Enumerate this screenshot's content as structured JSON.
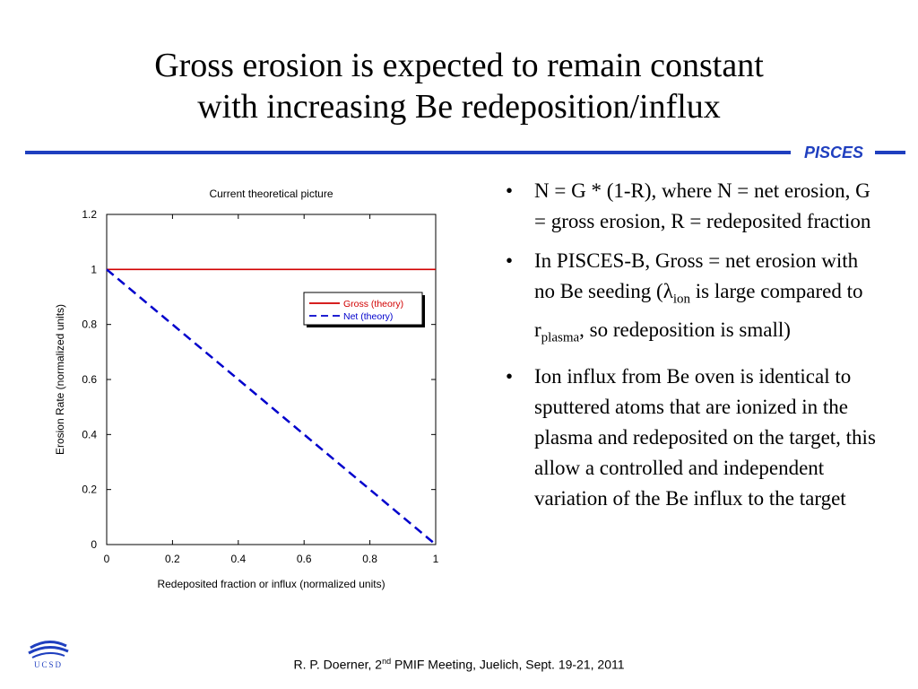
{
  "slide": {
    "title_line1": "Gross erosion is expected to remain constant",
    "title_line2": "with increasing Be redeposition/influx",
    "brand": "PISCES",
    "accent_color": "#1f3fbf"
  },
  "bullets": [
    {
      "text": "N = G * (1-R), where N = net erosion, G = gross erosion, R = redeposited fraction"
    },
    {
      "part1": "In PISCES-B, Gross = net erosion with no Be seeding (",
      "lambda": "λ",
      "sub1": "ion",
      "part2": " is large compared to r",
      "sub2": "plasma",
      "part3": ", so redeposition is small)"
    },
    {
      "text": "Ion influx from Be oven is identical to sputtered atoms that are ionized in the plasma and redeposited on the target, this allow a controlled and independent variation of the Be influx to the target"
    }
  ],
  "footer": {
    "before": "R. P. Doerner, 2",
    "sup": "nd",
    "after": " PMIF Meeting, Juelich, Sept. 19-21, 2011"
  },
  "logo": {
    "text": "UCSD"
  },
  "chart_data": {
    "type": "line",
    "title": "Current theoretical picture",
    "xlabel": "Redeposited fraction or influx (normalized units)",
    "ylabel": "Erosion Rate (normalized units)",
    "xlim": [
      0,
      1
    ],
    "ylim": [
      0,
      1.2
    ],
    "xticks": [
      0,
      0.2,
      0.4,
      0.6,
      0.8,
      1
    ],
    "yticks": [
      0,
      0.2,
      0.4,
      0.6,
      0.8,
      1,
      1.2
    ],
    "xtick_labels": [
      "0",
      "0.2",
      "0.4",
      "0.6",
      "0.8",
      "1"
    ],
    "ytick_labels": [
      "0",
      "0.2",
      "0.4",
      "0.6",
      "0.8",
      "1",
      "1.2"
    ],
    "grid": false,
    "legend_position": "upper-right",
    "series": [
      {
        "name": "Gross (theory)",
        "x": [
          0,
          1
        ],
        "y": [
          1,
          1
        ],
        "color": "#d10000",
        "dash": "solid"
      },
      {
        "name": "Net (theory)",
        "x": [
          0,
          1
        ],
        "y": [
          1,
          0
        ],
        "color": "#0000cc",
        "dash": "dashed"
      }
    ]
  }
}
